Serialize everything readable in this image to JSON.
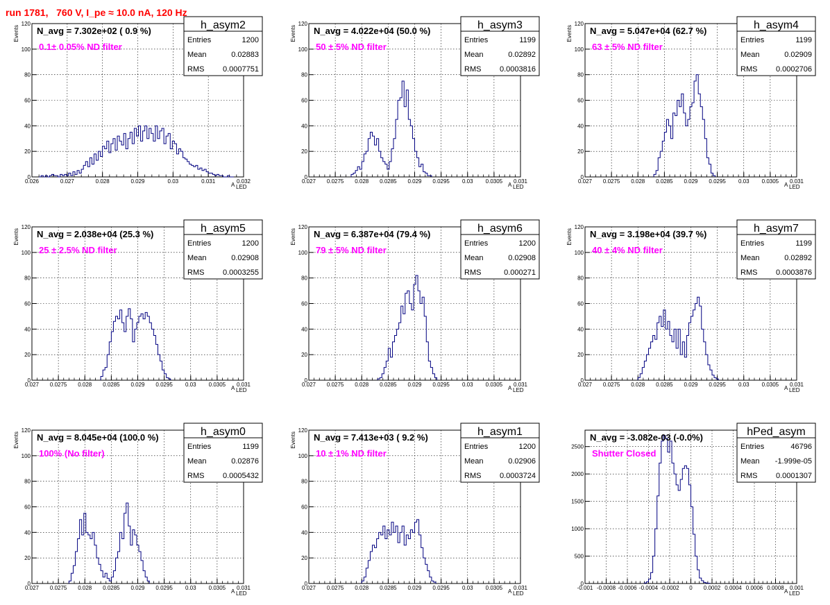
{
  "title": "run 1781,   760 V, I_pe ≈ 10.0 nA, 120 Hz",
  "chart_data": [
    {
      "type": "bar",
      "name": "h_asym2",
      "n_avg": "N_avg = 7.302e+02 ( 0.9 %)",
      "filter": "0.1± 0.05% ND filter",
      "stats": {
        "entries": "1200",
        "mean": "0.02883",
        "rms": "0.0007751"
      },
      "xlabel": "A",
      "xlabel_sub": "LED",
      "ylabel": "Events",
      "xlim": [
        0.026,
        0.032
      ],
      "ylim": [
        0,
        120
      ],
      "xticks": [
        "0.026",
        "0.027",
        "0.028",
        "0.029",
        "0.03",
        "0.031",
        "0.032"
      ],
      "yticks": [
        "0",
        "20",
        "40",
        "60",
        "80",
        "100",
        "120"
      ],
      "bins_start": 0.0262,
      "bin_width": 6e-05,
      "values": [
        0,
        1,
        0,
        1,
        0,
        1,
        2,
        1,
        1,
        0,
        2,
        1,
        2,
        1,
        3,
        1,
        4,
        2,
        5,
        3,
        6,
        9,
        12,
        8,
        15,
        10,
        18,
        13,
        20,
        16,
        24,
        22,
        28,
        19,
        26,
        30,
        21,
        32,
        28,
        25,
        34,
        22,
        30,
        35,
        26,
        38,
        32,
        40,
        28,
        36,
        40,
        30,
        38,
        34,
        28,
        40,
        30,
        36,
        38,
        26,
        32,
        34,
        22,
        28,
        26,
        18,
        22,
        20,
        15,
        14,
        12,
        10,
        9,
        8,
        9,
        6,
        7,
        5,
        6,
        4,
        3,
        3,
        2,
        1,
        2,
        1,
        1,
        0,
        0,
        1,
        0,
        0
      ]
    },
    {
      "type": "bar",
      "name": "h_asym3",
      "n_avg": "N_avg = 4.022e+04 (50.0 %)",
      "filter": "50 ± 5% ND filter",
      "stats": {
        "entries": "1199",
        "mean": "0.02892",
        "rms": "0.0003816"
      },
      "xlabel": "A",
      "xlabel_sub": "LED",
      "ylabel": "Events",
      "xlim": [
        0.027,
        0.031
      ],
      "ylim": [
        0,
        120
      ],
      "xticks": [
        "0.027",
        "0.0275",
        "0.028",
        "0.0285",
        "0.029",
        "0.0295",
        "0.03",
        "0.0305",
        "0.031"
      ],
      "yticks": [
        "0",
        "20",
        "40",
        "60",
        "80",
        "100",
        "120"
      ],
      "bins_start": 0.0278,
      "bin_width": 4e-05,
      "values": [
        2,
        3,
        5,
        8,
        6,
        12,
        18,
        20,
        30,
        35,
        32,
        25,
        30,
        20,
        15,
        12,
        10,
        6,
        12,
        22,
        30,
        45,
        60,
        62,
        75,
        55,
        68,
        45,
        40,
        30,
        20,
        15,
        8,
        10,
        4,
        3,
        1,
        1
      ]
    },
    {
      "type": "bar",
      "name": "h_asym4",
      "n_avg": "N_avg = 5.047e+04 (62.7 %)",
      "filter": "63 ± 5% ND filter",
      "stats": {
        "entries": "1199",
        "mean": "0.02909",
        "rms": "0.0002706"
      },
      "xlabel": "A",
      "xlabel_sub": "LED",
      "ylabel": "Events",
      "xlim": [
        0.027,
        0.031
      ],
      "ylim": [
        0,
        120
      ],
      "xticks": [
        "0.027",
        "0.0275",
        "0.028",
        "0.0285",
        "0.029",
        "0.0295",
        "0.03",
        "0.0305",
        "0.031"
      ],
      "yticks": [
        "0",
        "20",
        "40",
        "60",
        "80",
        "100",
        "120"
      ],
      "bins_start": 0.0283,
      "bin_width": 4e-05,
      "values": [
        2,
        5,
        15,
        20,
        28,
        35,
        45,
        40,
        30,
        50,
        48,
        60,
        55,
        65,
        50,
        40,
        45,
        55,
        58,
        75,
        80,
        65,
        55,
        45,
        30,
        15,
        10,
        3,
        1
      ]
    },
    {
      "type": "bar",
      "name": "h_asym5",
      "n_avg": "N_avg = 2.038e+04 (25.3 %)",
      "filter": "25 ± 2.5% ND filter",
      "stats": {
        "entries": "1200",
        "mean": "0.02908",
        "rms": "0.0003255"
      },
      "xlabel": "A",
      "xlabel_sub": "LED",
      "ylabel": "Events",
      "xlim": [
        0.027,
        0.031
      ],
      "ylim": [
        0,
        120
      ],
      "xticks": [
        "0.027",
        "0.0275",
        "0.028",
        "0.0285",
        "0.029",
        "0.0295",
        "0.03",
        "0.0305",
        "0.031"
      ],
      "yticks": [
        "0",
        "20",
        "40",
        "60",
        "80",
        "100",
        "120"
      ],
      "bins_start": 0.0283,
      "bin_width": 4e-05,
      "values": [
        3,
        8,
        10,
        20,
        30,
        38,
        46,
        50,
        48,
        55,
        45,
        38,
        50,
        56,
        48,
        30,
        40,
        45,
        50,
        52,
        48,
        53,
        50,
        45,
        40,
        35,
        28,
        20,
        15,
        8,
        5,
        2,
        1
      ]
    },
    {
      "type": "bar",
      "name": "h_asym6",
      "n_avg": "N_avg = 6.387e+04 (79.4 %)",
      "filter": "79 ± 5% ND filter",
      "stats": {
        "entries": "1200",
        "mean": "0.02908",
        "rms": "0.000271"
      },
      "xlabel": "A",
      "xlabel_sub": "LED",
      "ylabel": "Events",
      "xlim": [
        0.027,
        0.031
      ],
      "ylim": [
        0,
        120
      ],
      "xticks": [
        "0.027",
        "0.0275",
        "0.028",
        "0.0285",
        "0.029",
        "0.0295",
        "0.03",
        "0.0305",
        "0.031"
      ],
      "yticks": [
        "0",
        "20",
        "40",
        "60",
        "80",
        "100",
        "120"
      ],
      "bins_start": 0.0283,
      "bin_width": 4e-05,
      "values": [
        1,
        2,
        5,
        10,
        15,
        25,
        18,
        30,
        35,
        40,
        45,
        58,
        52,
        68,
        70,
        60,
        55,
        75,
        82,
        70,
        60,
        65,
        50,
        30,
        15,
        10,
        5,
        2
      ]
    },
    {
      "type": "bar",
      "name": "h_asym7",
      "n_avg": "N_avg = 3.198e+04 (39.7 %)",
      "filter": "40 ± 4% ND filter",
      "stats": {
        "entries": "1199",
        "mean": "0.02892",
        "rms": "0.0003876"
      },
      "xlabel": "A",
      "xlabel_sub": "LED",
      "ylabel": "Events",
      "xlim": [
        0.027,
        0.031
      ],
      "ylim": [
        0,
        120
      ],
      "xticks": [
        "0.027",
        "0.0275",
        "0.028",
        "0.0285",
        "0.029",
        "0.0295",
        "0.03",
        "0.0305",
        "0.031"
      ],
      "yticks": [
        "0",
        "20",
        "40",
        "60",
        "80",
        "100",
        "120"
      ],
      "bins_start": 0.028,
      "bin_width": 4e-05,
      "values": [
        2,
        5,
        10,
        15,
        20,
        25,
        30,
        35,
        32,
        45,
        50,
        42,
        55,
        40,
        46,
        35,
        30,
        40,
        25,
        40,
        20,
        30,
        18,
        35,
        45,
        50,
        55,
        60,
        65,
        58,
        40,
        30,
        20,
        12,
        8,
        4,
        2,
        1
      ]
    },
    {
      "type": "bar",
      "name": "h_asym0",
      "n_avg": "N_avg = 8.045e+04 (100.0 %)",
      "filter": "100% (No filter)",
      "stats": {
        "entries": "1199",
        "mean": "0.02876",
        "rms": "0.0005432"
      },
      "xlabel": "A",
      "xlabel_sub": "LED",
      "ylabel": "Events",
      "xlim": [
        0.027,
        0.031
      ],
      "ylim": [
        0,
        120
      ],
      "xticks": [
        "0.027",
        "0.0275",
        "0.028",
        "0.0285",
        "0.029",
        "0.0295",
        "0.03",
        "0.0305",
        "0.031"
      ],
      "yticks": [
        "0",
        "20",
        "40",
        "60",
        "80",
        "100",
        "120"
      ],
      "bins_start": 0.0277,
      "bin_width": 4e-05,
      "values": [
        2,
        8,
        14,
        25,
        35,
        50,
        38,
        55,
        40,
        38,
        35,
        40,
        30,
        20,
        15,
        10,
        5,
        8,
        4,
        2,
        5,
        10,
        20,
        25,
        40,
        35,
        55,
        63,
        45,
        30,
        42,
        38,
        30,
        25,
        18,
        10,
        5,
        2
      ]
    },
    {
      "type": "bar",
      "name": "h_asym1",
      "n_avg": "N_avg = 7.413e+03 ( 9.2 %)",
      "filter": "10 ± 1% ND filter",
      "stats": {
        "entries": "1200",
        "mean": "0.02906",
        "rms": "0.0003724"
      },
      "xlabel": "A",
      "xlabel_sub": "LED",
      "ylabel": "Events",
      "xlim": [
        0.027,
        0.031
      ],
      "ylim": [
        0,
        120
      ],
      "xticks": [
        "0.027",
        "0.0275",
        "0.028",
        "0.0285",
        "0.029",
        "0.0295",
        "0.03",
        "0.0305",
        "0.031"
      ],
      "yticks": [
        "0",
        "20",
        "40",
        "60",
        "80",
        "100",
        "120"
      ],
      "bins_start": 0.028,
      "bin_width": 4e-05,
      "values": [
        2,
        5,
        12,
        18,
        25,
        30,
        28,
        35,
        40,
        38,
        45,
        35,
        42,
        38,
        48,
        40,
        45,
        32,
        40,
        45,
        30,
        38,
        35,
        42,
        40,
        48,
        50,
        38,
        28,
        20,
        15,
        10,
        5,
        2,
        1
      ]
    },
    {
      "type": "bar",
      "name": "hPed_asym",
      "n_avg": "N_avg = -3.082e-03 (-0.0%)",
      "filter": "Shutter Closed",
      "stats": {
        "entries": "46796",
        "mean": "-1.999e-05",
        "rms": "0.0001307"
      },
      "xlabel": "A",
      "xlabel_sub": "LED",
      "ylabel": "",
      "xlim": [
        -0.001,
        0.001
      ],
      "ylim": [
        0,
        2800
      ],
      "xticks": [
        "-0.001",
        "-0.0008",
        "-0.0006",
        "-0.0004",
        "-0.0002",
        "0",
        "0.0002",
        "0.0004",
        "0.0006",
        "0.0008",
        "0.001"
      ],
      "ytick_values": [
        0,
        500,
        1000,
        1500,
        2000,
        2500
      ],
      "yticks": [
        "0",
        "500",
        "1000",
        "1500",
        "2000",
        "2500"
      ],
      "bins_start": -0.00044,
      "bin_width": 2e-05,
      "values": [
        10,
        30,
        80,
        200,
        500,
        1000,
        1600,
        2200,
        2600,
        2700,
        2650,
        2400,
        2600,
        2200,
        2000,
        1800,
        1700,
        1900,
        2100,
        2150,
        2100,
        1800,
        1400,
        900,
        500,
        250,
        100,
        50,
        20,
        10,
        5
      ]
    }
  ]
}
